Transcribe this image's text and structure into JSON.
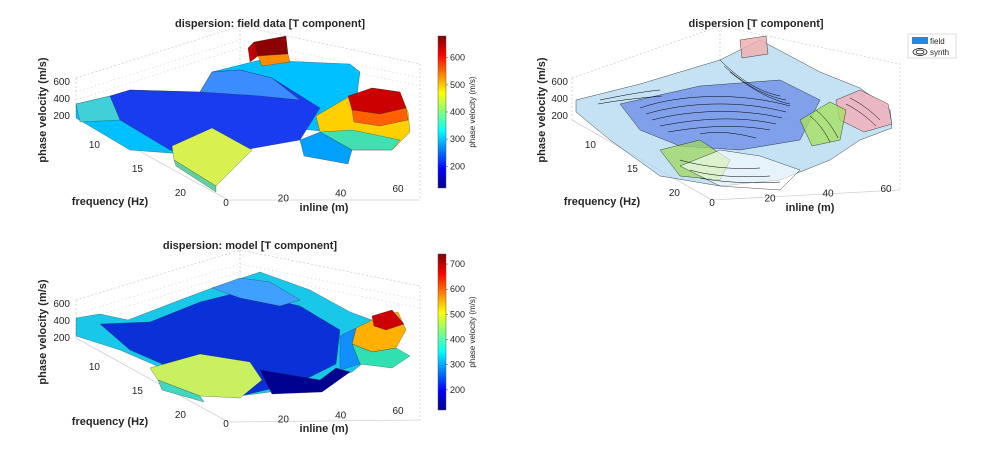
{
  "chart_data": [
    {
      "type": "surface",
      "title": "dispersion: field data [T component]",
      "xlabel": "inline (m)",
      "ylabel": "frequency (Hz)",
      "zlabel": "phase velocity (m/s)",
      "x_ticks": [
        "0",
        "20",
        "40",
        "60"
      ],
      "y_ticks": [
        "10",
        "15",
        "20"
      ],
      "z_ticks": [
        "200",
        "400",
        "600"
      ],
      "colorbar_label": "phase velocity (m/s)",
      "colorbar_ticks": [
        "200",
        "300",
        "400",
        "500",
        "600"
      ],
      "colormap": "jet",
      "zlim": [
        120,
        680
      ],
      "colorbar_range": [
        120,
        680
      ],
      "features": [
        {
          "x": 0,
          "z": 380
        },
        {
          "x": 20,
          "z": 420
        },
        {
          "x": 30,
          "z": 450
        },
        {
          "x": 50,
          "z": 420
        },
        {
          "x": 60,
          "z": 650
        }
      ]
    },
    {
      "type": "surface",
      "title": "dispersion [T component]",
      "xlabel": "inline (m)",
      "ylabel": "frequency (Hz)",
      "zlabel": "phase velocity (m/s)",
      "x_ticks": [
        "0",
        "20",
        "40",
        "60"
      ],
      "y_ticks": [
        "10",
        "15",
        "20"
      ],
      "z_ticks": [
        "200",
        "400",
        "600"
      ],
      "legend": {
        "position": "top-right",
        "entries": [
          "field",
          "synth"
        ]
      },
      "series": [
        {
          "name": "field",
          "style": "translucent surface"
        },
        {
          "name": "synth",
          "style": "contour lines"
        }
      ]
    },
    {
      "type": "surface",
      "title": "dispersion: model [T component]",
      "xlabel": "inline (m)",
      "ylabel": "frequency (Hz)",
      "zlabel": "phase velocity (m/s)",
      "x_ticks": [
        "0",
        "20",
        "40",
        "60"
      ],
      "y_ticks": [
        "10",
        "15",
        "20"
      ],
      "z_ticks": [
        "200",
        "400",
        "600"
      ],
      "colorbar_label": "phase velocity (m/s)",
      "colorbar_ticks": [
        "200",
        "300",
        "400",
        "500",
        "600",
        "700"
      ],
      "colormap": "jet",
      "zlim": [
        120,
        740
      ],
      "colorbar_range": [
        120,
        740
      ],
      "features": [
        {
          "x": 0,
          "z": 400
        },
        {
          "x": 20,
          "z": 380
        },
        {
          "x": 30,
          "z": 460
        },
        {
          "x": 50,
          "z": 430
        },
        {
          "x": 60,
          "z": 700
        }
      ]
    }
  ]
}
